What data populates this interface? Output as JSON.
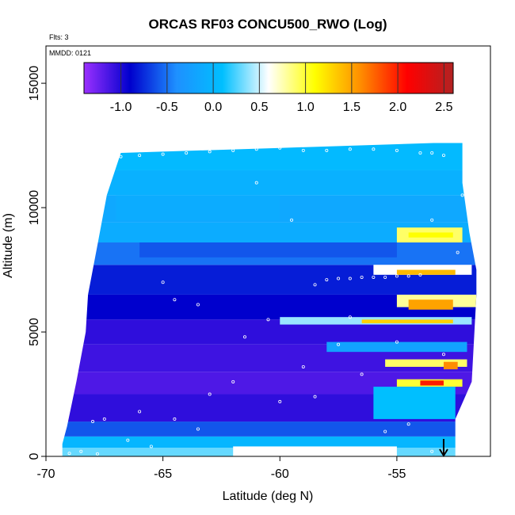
{
  "chart_data": {
    "type": "heatmap",
    "title": "ORCAS RF03 CONCU500_RWO (Log)",
    "flights_note": "Flts: 3",
    "date_note": "MMDD: 0121",
    "xlabel": "Latitude (deg N)",
    "ylabel": "Altitude (m)",
    "xlim": [
      -70,
      -51
    ],
    "ylim": [
      0,
      16500
    ],
    "x_ticks": [
      -70,
      -65,
      -60,
      -55
    ],
    "y_ticks": [
      0,
      5000,
      10000,
      15000
    ],
    "x_tick_labels": [
      "-70",
      "-65",
      "-60",
      "-55"
    ],
    "y_tick_labels": [
      "0",
      "5000",
      "10000",
      "15000"
    ],
    "colorbar": {
      "min": -1.4,
      "max": 2.6,
      "ticks": [
        -1.0,
        -0.5,
        0.0,
        0.5,
        1.0,
        1.5,
        2.0,
        2.5
      ],
      "tick_labels": [
        "-1.0",
        "-0.5",
        "0.0",
        "0.5",
        "1.0",
        "1.5",
        "2.0",
        "2.5"
      ],
      "colors": [
        "#9b30ff",
        "#0000cd",
        "#1e90ff",
        "#00bfff",
        "#ffffff",
        "#ffff00",
        "#ff8c00",
        "#ff0000",
        "#b22222"
      ]
    },
    "domain_outline": [
      [
        -69.3,
        0
      ],
      [
        -52.5,
        0
      ],
      [
        -52.5,
        1500
      ],
      [
        -51.8,
        3000
      ],
      [
        -51.6,
        6500
      ],
      [
        -51.6,
        7500
      ],
      [
        -51.9,
        9000
      ],
      [
        -52.2,
        11000
      ],
      [
        -52.2,
        12600
      ],
      [
        -53.3,
        12600
      ],
      [
        -60.0,
        12400
      ],
      [
        -66.8,
        12200
      ],
      [
        -67.4,
        10500
      ],
      [
        -67.8,
        8500
      ],
      [
        -68.2,
        6500
      ],
      [
        -68.3,
        5000
      ],
      [
        -68.7,
        3000
      ],
      [
        -69.1,
        1200
      ],
      [
        -69.3,
        500
      ]
    ],
    "layers": [
      {
        "y0": 0,
        "y1": 350,
        "z": 0.3
      },
      {
        "y0": 350,
        "y1": 800,
        "z": 0.0
      },
      {
        "y0": 800,
        "y1": 1400,
        "z": -0.6
      },
      {
        "y0": 1400,
        "y1": 2500,
        "z": -1.05
      },
      {
        "y0": 2500,
        "y1": 3400,
        "z": -1.15
      },
      {
        "y0": 3400,
        "y1": 4500,
        "z": -1.1
      },
      {
        "y0": 4500,
        "y1": 5500,
        "z": -1.05
      },
      {
        "y0": 5500,
        "y1": 6500,
        "z": -0.9
      },
      {
        "y0": 6500,
        "y1": 7700,
        "z": -0.8
      },
      {
        "y0": 7700,
        "y1": 8600,
        "z": -0.5
      },
      {
        "y0": 8600,
        "y1": 9400,
        "z": -0.1
      },
      {
        "y0": 9400,
        "y1": 10500,
        "z": -0.15
      },
      {
        "y0": 10500,
        "y1": 11500,
        "z": -0.05
      },
      {
        "y0": 11500,
        "y1": 12600,
        "z": 0.05
      }
    ],
    "features": [
      {
        "x0": -55.0,
        "x1": -52.2,
        "y0": 8600,
        "y1": 9200,
        "z": 0.9
      },
      {
        "x0": -54.5,
        "x1": -52.6,
        "y0": 8800,
        "y1": 9000,
        "z": 1.1
      },
      {
        "x0": -56.0,
        "x1": -51.8,
        "y0": 7300,
        "y1": 7700,
        "z": 0.6
      },
      {
        "x0": -55.0,
        "x1": -52.5,
        "y0": 7300,
        "y1": 7500,
        "z": 1.4
      },
      {
        "x0": -55.0,
        "x1": -51.6,
        "y0": 6000,
        "y1": 6500,
        "z": 0.8
      },
      {
        "x0": -54.5,
        "x1": -52.6,
        "y0": 5900,
        "y1": 6300,
        "z": 1.5
      },
      {
        "x0": -60.0,
        "x1": -51.8,
        "y0": 5300,
        "y1": 5600,
        "z": 0.4
      },
      {
        "x0": -56.5,
        "x1": -52.6,
        "y0": 5350,
        "y1": 5500,
        "z": 1.3
      },
      {
        "x0": -58.0,
        "x1": -52.0,
        "y0": 4200,
        "y1": 4600,
        "z": -0.2
      },
      {
        "x0": -55.5,
        "x1": -52.0,
        "y0": 3600,
        "y1": 3900,
        "z": 0.9
      },
      {
        "x0": -55.0,
        "x1": -52.2,
        "y0": 2800,
        "y1": 3100,
        "z": 1.0
      },
      {
        "x0": -54.0,
        "x1": -53.0,
        "y0": 2850,
        "y1": 3050,
        "z": 2.0
      },
      {
        "x0": -53.0,
        "x1": -52.4,
        "y0": 3500,
        "y1": 3800,
        "z": 1.6
      },
      {
        "x0": -56.0,
        "x1": -52.5,
        "y0": 1500,
        "y1": 2800,
        "z": 0.1
      },
      {
        "x0": -67.0,
        "x1": -60.0,
        "y0": 9500,
        "y1": 10500,
        "z": -0.1
      },
      {
        "x0": -66.0,
        "x1": -55.0,
        "y0": 8000,
        "y1": 8600,
        "z": -0.6
      },
      {
        "x0": -62.0,
        "x1": -55.0,
        "y0": 0,
        "y1": 400,
        "z": 0.6
      }
    ],
    "flight_track_points": [
      [
        -69.0,
        120
      ],
      [
        -68.5,
        200
      ],
      [
        -68.0,
        1400
      ],
      [
        -67.5,
        1500
      ],
      [
        -66.5,
        650
      ],
      [
        -65.5,
        400
      ],
      [
        -64.5,
        1500
      ],
      [
        -63.0,
        2500
      ],
      [
        -62.0,
        3000
      ],
      [
        -61.5,
        4800
      ],
      [
        -60.5,
        5500
      ],
      [
        -60.0,
        2200
      ],
      [
        -59.0,
        3600
      ],
      [
        -58.5,
        6900
      ],
      [
        -58.0,
        7100
      ],
      [
        -57.5,
        7150
      ],
      [
        -57.0,
        7150
      ],
      [
        -56.5,
        7200
      ],
      [
        -56.0,
        7200
      ],
      [
        -55.5,
        7200
      ],
      [
        -55.0,
        7250
      ],
      [
        -54.5,
        7250
      ],
      [
        -54.0,
        7300
      ],
      [
        -53.5,
        9500
      ],
      [
        -53.0,
        12100
      ],
      [
        -53.5,
        12200
      ],
      [
        -54.0,
        12200
      ],
      [
        -55.0,
        12300
      ],
      [
        -56.0,
        12350
      ],
      [
        -57.0,
        12350
      ],
      [
        -58.0,
        12300
      ],
      [
        -59.0,
        12300
      ],
      [
        -60.0,
        12400
      ],
      [
        -61.0,
        12350
      ],
      [
        -62.0,
        12300
      ],
      [
        -63.0,
        12250
      ],
      [
        -64.0,
        12200
      ],
      [
        -65.0,
        12150
      ],
      [
        -66.0,
        12100
      ],
      [
        -66.8,
        12050
      ],
      [
        -64.5,
        6300
      ],
      [
        -65.0,
        7000
      ],
      [
        -63.5,
        6100
      ],
      [
        -61.0,
        11000
      ],
      [
        -59.5,
        9500
      ],
      [
        -57.5,
        4500
      ],
      [
        -56.5,
        3300
      ],
      [
        -55.5,
        1000
      ],
      [
        -54.5,
        1300
      ],
      [
        -53.5,
        200
      ],
      [
        -53.0,
        150
      ],
      [
        -67.8,
        100
      ],
      [
        -66.0,
        1800
      ],
      [
        -63.5,
        1100
      ],
      [
        -58.5,
        2400
      ],
      [
        -57.0,
        5600
      ],
      [
        -55.0,
        4600
      ],
      [
        -53.0,
        4100
      ],
      [
        -52.4,
        8200
      ],
      [
        -52.2,
        10500
      ],
      [
        -52.0,
        11600
      ]
    ],
    "arrow_marker": {
      "x": -53.0,
      "y": 0
    }
  }
}
